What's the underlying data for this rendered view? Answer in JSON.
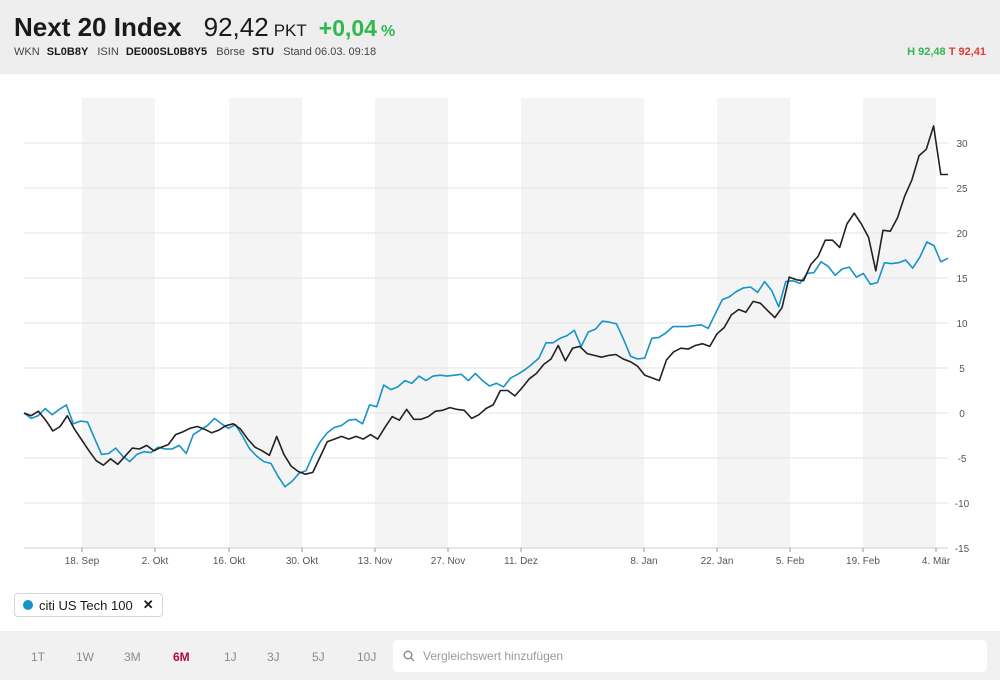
{
  "header": {
    "title": "Next 20 Index",
    "price": "92,42",
    "unit": "PKT",
    "change": "+0,04",
    "change_unit": "%",
    "wkn_label": "WKN",
    "wkn": "SL0B8Y",
    "isin_label": "ISIN",
    "isin": "DE000SL0B8Y5",
    "boerse_label": "Börse",
    "boerse": "STU",
    "stand": "Stand 06.03. 09:18",
    "high": "H 92,48",
    "low": "T 92,41"
  },
  "colors": {
    "main": "#222222",
    "compare": "#1793c7",
    "positive": "#2fb84d",
    "negative": "#e53935",
    "active_tab": "#b0093a"
  },
  "chart_data": {
    "type": "line",
    "x_ticks": [
      "18. Sep",
      "2. Okt",
      "16. Okt",
      "30. Okt",
      "13. Nov",
      "27. Nov",
      "11. Dez",
      "8. Jan",
      "22. Jan",
      "5. Feb",
      "19. Feb",
      "4. Mär"
    ],
    "y_ticks": [
      30,
      25,
      20,
      15,
      10,
      5,
      0,
      -5,
      -10,
      -15
    ],
    "ylim": [
      -15,
      35
    ],
    "grid": true,
    "y_axis_position": "right",
    "series": [
      {
        "name": "Next 20 Index",
        "color": "#222222",
        "values": [
          0,
          -0.3,
          0.2,
          -0.8,
          -2.0,
          -1.5,
          -0.3,
          -1.8,
          -3.0,
          -4.2,
          -5.3,
          -5.8,
          -5.1,
          -5.7,
          -4.8,
          -3.9,
          -4.0,
          -3.6,
          -4.2,
          -3.8,
          -3.5,
          -2.4,
          -2.1,
          -1.7,
          -1.5,
          -1.8,
          -2.2,
          -1.9,
          -1.4,
          -1.2,
          -1.8,
          -2.9,
          -3.8,
          -4.2,
          -4.7,
          -2.6,
          -4.6,
          -5.9,
          -6.5,
          -6.8,
          -6.6,
          -4.9,
          -3.2,
          -2.9,
          -2.6,
          -2.9,
          -2.6,
          -2.9,
          -2.4,
          -2.9,
          -1.6,
          -0.4,
          -0.8,
          0.4,
          -0.7,
          -0.7,
          -0.4,
          0.2,
          0.3,
          0.6,
          0.4,
          0.3,
          -0.6,
          -0.2,
          0.5,
          0.9,
          2.5,
          2.5,
          1.9,
          2.8,
          3.8,
          4.4,
          5.4,
          6.0,
          7.5,
          5.8,
          7.2,
          7.4,
          6.6,
          6.4,
          6.2,
          6.4,
          6.5,
          6.0,
          5.7,
          5.2,
          4.2,
          3.9,
          3.6,
          5.9,
          6.8,
          7.2,
          7.1,
          7.5,
          7.7,
          7.4,
          8.8,
          9.5,
          10.9,
          11.5,
          11.2,
          12.4,
          12.2,
          11.4,
          10.6,
          11.7,
          15.1,
          14.8,
          14.7,
          16.5,
          17.4,
          19.2,
          19.2,
          18.4,
          21.0,
          22.2,
          21.0,
          19.5,
          15.8,
          20.3,
          20.2,
          21.7,
          24.1,
          25.9,
          28.6,
          29.3,
          31.9,
          26.5,
          26.5
        ]
      },
      {
        "name": "citi US Tech 100",
        "color": "#1793c7",
        "values": [
          0,
          -0.6,
          -0.3,
          0.5,
          -0.2,
          0.4,
          0.9,
          -1.2,
          -0.9,
          -1.0,
          -2.8,
          -4.6,
          -4.5,
          -3.9,
          -4.8,
          -5.4,
          -4.6,
          -4.3,
          -4.4,
          -3.8,
          -4.0,
          -4.0,
          -3.6,
          -4.5,
          -2.4,
          -1.9,
          -1.4,
          -0.6,
          -1.2,
          -1.7,
          -1.3,
          -2.6,
          -4.0,
          -4.8,
          -5.4,
          -5.6,
          -7.0,
          -8.2,
          -7.6,
          -6.7,
          -6.4,
          -4.6,
          -3.2,
          -2.2,
          -1.6,
          -1.4,
          -0.8,
          -0.7,
          -1.2,
          0.9,
          0.7,
          3.1,
          2.6,
          2.9,
          3.6,
          3.3,
          4.1,
          3.6,
          4.1,
          4.2,
          4.1,
          4.2,
          4.3,
          3.6,
          4.4,
          3.6,
          3.0,
          3.3,
          2.9,
          3.9,
          4.3,
          4.8,
          5.4,
          6.1,
          7.8,
          7.8,
          8.3,
          8.6,
          9.2,
          7.4,
          9.0,
          9.3,
          10.2,
          10.1,
          9.9,
          8.2,
          6.3,
          6.0,
          6.1,
          8.3,
          8.4,
          8.9,
          9.6,
          9.6,
          9.6,
          9.7,
          9.8,
          9.4,
          11.0,
          12.6,
          12.9,
          13.5,
          13.9,
          14.0,
          13.4,
          14.6,
          13.6,
          11.8,
          14.6,
          14.7,
          14.4,
          15.5,
          15.6,
          16.8,
          16.3,
          15.3,
          16.0,
          16.2,
          15.1,
          15.5,
          14.3,
          14.5,
          16.7,
          16.6,
          16.7,
          17.0,
          16.1,
          17.3,
          19.0,
          18.6,
          16.8,
          17.2
        ]
      }
    ]
  },
  "compare_chip": {
    "label": "citi US Tech 100",
    "close": "✕"
  },
  "ranges": [
    "1T",
    "1W",
    "3M",
    "6M",
    "1J",
    "3J",
    "5J",
    "10J"
  ],
  "active_range": "6M",
  "search": {
    "placeholder": "Vergleichswert hinzufügen"
  }
}
